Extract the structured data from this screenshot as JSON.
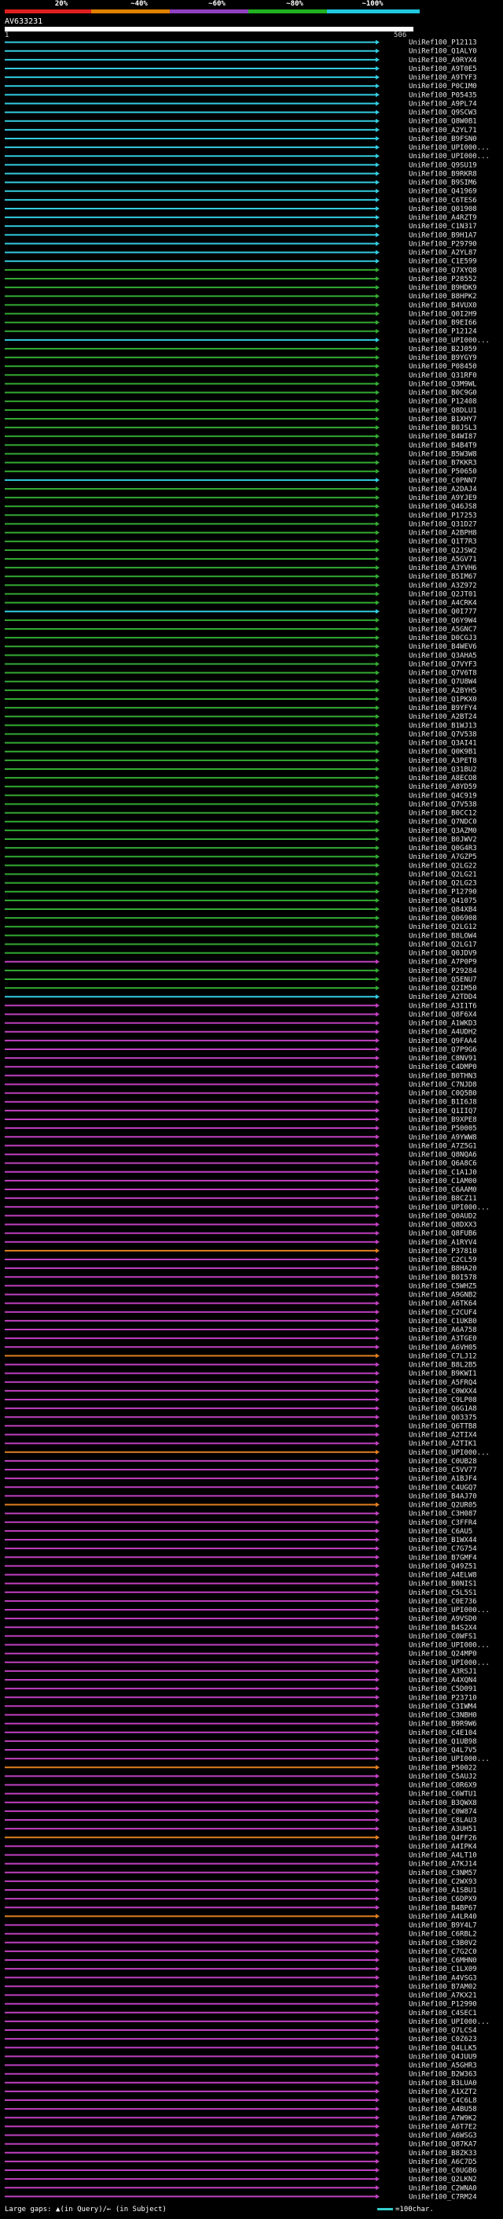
{
  "scale": {
    "labels": [
      "20%",
      "~40%",
      "~60%",
      "~80%",
      "~100%"
    ],
    "colors": [
      "#e02020",
      "#e08000",
      "#9040c0",
      "#20b020",
      "#20c8e0"
    ]
  },
  "query": {
    "name": "AV633231",
    "start": "1",
    "end": "506"
  },
  "legend": {
    "gaps": "Large gaps: ▲(in Query)/← (in Subject)",
    "scale_note": "=100char."
  },
  "hits": [
    {
      "id": "UniRef100_P12113",
      "color": "cyan"
    },
    {
      "id": "UniRef100_Q1ALY0",
      "color": "cyan"
    },
    {
      "id": "UniRef100_A9RYX4",
      "color": "cyan"
    },
    {
      "id": "UniRef100_A9T0E5",
      "color": "cyan"
    },
    {
      "id": "UniRef100_A9TYF3",
      "color": "cyan"
    },
    {
      "id": "UniRef100_P0C1M0",
      "color": "cyan"
    },
    {
      "id": "UniRef100_P05435",
      "color": "cyan"
    },
    {
      "id": "UniRef100_A9PL74",
      "color": "cyan"
    },
    {
      "id": "UniRef100_Q9SCW3",
      "color": "cyan"
    },
    {
      "id": "UniRef100_Q8W0B1",
      "color": "cyan"
    },
    {
      "id": "UniRef100_A2YL71",
      "color": "cyan"
    },
    {
      "id": "UniRef100_B9FSN0",
      "color": "cyan"
    },
    {
      "id": "UniRef100_UPI000...",
      "color": "cyan"
    },
    {
      "id": "UniRef100_UPI000...",
      "color": "cyan"
    },
    {
      "id": "UniRef100_Q9SU19",
      "color": "cyan"
    },
    {
      "id": "UniRef100_B9RKR8",
      "color": "cyan"
    },
    {
      "id": "UniRef100_B9SIM6",
      "color": "cyan"
    },
    {
      "id": "UniRef100_Q41969",
      "color": "cyan"
    },
    {
      "id": "UniRef100_C6TES6",
      "color": "cyan"
    },
    {
      "id": "UniRef100_Q01908",
      "color": "cyan"
    },
    {
      "id": "UniRef100_A4RZT9",
      "color": "cyan"
    },
    {
      "id": "UniRef100_C1N317",
      "color": "cyan"
    },
    {
      "id": "UniRef100_B9H1A7",
      "color": "cyan"
    },
    {
      "id": "UniRef100_P29790",
      "color": "cyan"
    },
    {
      "id": "UniRef100_A2YL87",
      "color": "cyan"
    },
    {
      "id": "UniRef100_C1E599",
      "color": "cyan"
    },
    {
      "id": "UniRef100_Q7XYQ8",
      "color": "green"
    },
    {
      "id": "UniRef100_P28552",
      "color": "green"
    },
    {
      "id": "UniRef100_B9HDK9",
      "color": "green"
    },
    {
      "id": "UniRef100_B8HPK2",
      "color": "green"
    },
    {
      "id": "UniRef100_B4VUX0",
      "color": "green"
    },
    {
      "id": "UniRef100_Q0I2H9",
      "color": "green"
    },
    {
      "id": "UniRef100_B9EI66",
      "color": "green"
    },
    {
      "id": "UniRef100_P12124",
      "color": "green"
    },
    {
      "id": "UniRef100_UPI000...",
      "color": "cyan"
    },
    {
      "id": "UniRef100_B2J059",
      "color": "green"
    },
    {
      "id": "UniRef100_B9YGY9",
      "color": "green"
    },
    {
      "id": "UniRef100_P08450",
      "color": "green"
    },
    {
      "id": "UniRef100_Q31RF0",
      "color": "green"
    },
    {
      "id": "UniRef100_Q3M9WL",
      "color": "green"
    },
    {
      "id": "UniRef100_B0C9G0",
      "color": "green"
    },
    {
      "id": "UniRef100_P12408",
      "color": "green"
    },
    {
      "id": "UniRef100_Q8DLU1",
      "color": "green"
    },
    {
      "id": "UniRef100_B1XHY7",
      "color": "green"
    },
    {
      "id": "UniRef100_B0JSL3",
      "color": "green"
    },
    {
      "id": "UniRef100_B4WI87",
      "color": "green"
    },
    {
      "id": "UniRef100_B4B4T9",
      "color": "green"
    },
    {
      "id": "UniRef100_B5W3W8",
      "color": "green"
    },
    {
      "id": "UniRef100_B7KKR3",
      "color": "green"
    },
    {
      "id": "UniRef100_P50650",
      "color": "green"
    },
    {
      "id": "UniRef100_C0PNN7",
      "color": "cyan"
    },
    {
      "id": "UniRef100_A2DAJ4",
      "color": "green"
    },
    {
      "id": "UniRef100_A9YJE9",
      "color": "green"
    },
    {
      "id": "UniRef100_Q46JS8",
      "color": "green"
    },
    {
      "id": "UniRef100_P17253",
      "color": "green"
    },
    {
      "id": "UniRef100_Q31D27",
      "color": "green"
    },
    {
      "id": "UniRef100_A2BPH8",
      "color": "green"
    },
    {
      "id": "UniRef100_Q1T7R3",
      "color": "green"
    },
    {
      "id": "UniRef100_Q2JSW2",
      "color": "green"
    },
    {
      "id": "UniRef100_A5GV71",
      "color": "green"
    },
    {
      "id": "UniRef100_A3YVH6",
      "color": "green"
    },
    {
      "id": "UniRef100_B5IM67",
      "color": "green"
    },
    {
      "id": "UniRef100_A3Z972",
      "color": "green"
    },
    {
      "id": "UniRef100_Q2JT01",
      "color": "green"
    },
    {
      "id": "UniRef100_A4CRK4",
      "color": "green"
    },
    {
      "id": "UniRef100_Q0I777",
      "color": "cyan"
    },
    {
      "id": "UniRef100_Q6Y9W4",
      "color": "green"
    },
    {
      "id": "UniRef100_A5GNC7",
      "color": "green"
    },
    {
      "id": "UniRef100_D0CGJ3",
      "color": "green"
    },
    {
      "id": "UniRef100_B4WEV6",
      "color": "green"
    },
    {
      "id": "UniRef100_Q3AHA5",
      "color": "green"
    },
    {
      "id": "UniRef100_Q7VYF3",
      "color": "green"
    },
    {
      "id": "UniRef100_Q7V6T8",
      "color": "green"
    },
    {
      "id": "UniRef100_Q7U8W4",
      "color": "green"
    },
    {
      "id": "UniRef100_A2BYH5",
      "color": "green"
    },
    {
      "id": "UniRef100_Q1PKX0",
      "color": "green"
    },
    {
      "id": "UniRef100_B9YFY4",
      "color": "green"
    },
    {
      "id": "UniRef100_A2BT24",
      "color": "green"
    },
    {
      "id": "UniRef100_B1WJ13",
      "color": "green"
    },
    {
      "id": "UniRef100_Q7V538",
      "color": "green"
    },
    {
      "id": "UniRef100_Q3AI41",
      "color": "green"
    },
    {
      "id": "UniRef100_Q0K9B1",
      "color": "green"
    },
    {
      "id": "UniRef100_A3PET8",
      "color": "green"
    },
    {
      "id": "UniRef100_Q31BU2",
      "color": "green"
    },
    {
      "id": "UniRef100_A8ECO8",
      "color": "green"
    },
    {
      "id": "UniRef100_A8YD59",
      "color": "green"
    },
    {
      "id": "UniRef100_Q4C919",
      "color": "green"
    },
    {
      "id": "UniRef100_Q7V538",
      "color": "green"
    },
    {
      "id": "UniRef100_B0CC12",
      "color": "green"
    },
    {
      "id": "UniRef100_Q7NDC0",
      "color": "green"
    },
    {
      "id": "UniRef100_Q3AZM0",
      "color": "green"
    },
    {
      "id": "UniRef100_B0JWV2",
      "color": "green"
    },
    {
      "id": "UniRef100_Q0G4R3",
      "color": "green"
    },
    {
      "id": "UniRef100_A7GZP5",
      "color": "green"
    },
    {
      "id": "UniRef100_Q2LG22",
      "color": "green"
    },
    {
      "id": "UniRef100_Q2LG21",
      "color": "green"
    },
    {
      "id": "UniRef100_Q2LG23",
      "color": "green"
    },
    {
      "id": "UniRef100_P12790",
      "color": "green"
    },
    {
      "id": "UniRef100_Q41075",
      "color": "green"
    },
    {
      "id": "UniRef100_Q84XB4",
      "color": "green"
    },
    {
      "id": "UniRef100_Q06908",
      "color": "green"
    },
    {
      "id": "UniRef100_Q2LG12",
      "color": "green"
    },
    {
      "id": "UniRef100_B8LOW4",
      "color": "green"
    },
    {
      "id": "UniRef100_Q2LG17",
      "color": "green"
    },
    {
      "id": "UniRef100_Q0JDV9",
      "color": "green"
    },
    {
      "id": "UniRef100_A7P0P9",
      "color": "magenta"
    },
    {
      "id": "UniRef100_P29284",
      "color": "green"
    },
    {
      "id": "UniRef100_Q5ENU7",
      "color": "green"
    },
    {
      "id": "UniRef100_Q2IM50",
      "color": "green"
    },
    {
      "id": "UniRef100_A2TDD4",
      "color": "cyan"
    },
    {
      "id": "UniRef100_A3I1T6",
      "color": "magenta"
    },
    {
      "id": "UniRef100_Q8F6X4",
      "color": "magenta"
    },
    {
      "id": "UniRef100_A1WKD3",
      "color": "magenta"
    },
    {
      "id": "UniRef100_A4UDH2",
      "color": "magenta"
    },
    {
      "id": "UniRef100_Q9FAA4",
      "color": "magenta"
    },
    {
      "id": "UniRef100_Q7P9G6",
      "color": "magenta"
    },
    {
      "id": "UniRef100_C8NV91",
      "color": "magenta"
    },
    {
      "id": "UniRef100_C4DMP0",
      "color": "magenta"
    },
    {
      "id": "UniRef100_B0THN3",
      "color": "magenta"
    },
    {
      "id": "UniRef100_C7NJD8",
      "color": "magenta"
    },
    {
      "id": "UniRef100_C0Q5B0",
      "color": "magenta"
    },
    {
      "id": "UniRef100_B1I6J8",
      "color": "magenta"
    },
    {
      "id": "UniRef100_Q1IIQ7",
      "color": "magenta"
    },
    {
      "id": "UniRef100_B9XPE8",
      "color": "magenta"
    },
    {
      "id": "UniRef100_P50005",
      "color": "magenta"
    },
    {
      "id": "UniRef100_A9YWW8",
      "color": "magenta"
    },
    {
      "id": "UniRef100_A7Z5G1",
      "color": "magenta"
    },
    {
      "id": "UniRef100_Q8NQA6",
      "color": "magenta"
    },
    {
      "id": "UniRef100_Q6A8C6",
      "color": "magenta"
    },
    {
      "id": "UniRef100_C1A1J0",
      "color": "magenta"
    },
    {
      "id": "UniRef100_C1AM00",
      "color": "magenta"
    },
    {
      "id": "UniRef100_C6AAM0",
      "color": "magenta"
    },
    {
      "id": "UniRef100_B8CZ11",
      "color": "magenta"
    },
    {
      "id": "UniRef100_UPI000...",
      "color": "magenta"
    },
    {
      "id": "UniRef100_Q0AUD2",
      "color": "magenta"
    },
    {
      "id": "UniRef100_Q8DXX3",
      "color": "magenta"
    },
    {
      "id": "UniRef100_Q8FUB6",
      "color": "magenta"
    },
    {
      "id": "UniRef100_A1RYV4",
      "color": "magenta"
    },
    {
      "id": "UniRef100_P37810",
      "color": "orange"
    },
    {
      "id": "UniRef100_C2CL59",
      "color": "magenta"
    },
    {
      "id": "UniRef100_B8HA20",
      "color": "magenta"
    },
    {
      "id": "UniRef100_B0I578",
      "color": "magenta"
    },
    {
      "id": "UniRef100_C5WHZ5",
      "color": "magenta"
    },
    {
      "id": "UniRef100_A9GNB2",
      "color": "magenta"
    },
    {
      "id": "UniRef100_A6TK64",
      "color": "magenta"
    },
    {
      "id": "UniRef100_C2CUF4",
      "color": "magenta"
    },
    {
      "id": "UniRef100_C1UKB0",
      "color": "magenta"
    },
    {
      "id": "UniRef100_A6A758",
      "color": "magenta"
    },
    {
      "id": "UniRef100_A3TGE0",
      "color": "magenta"
    },
    {
      "id": "UniRef100_A6VH05",
      "color": "magenta"
    },
    {
      "id": "UniRef100_C7LJ12",
      "color": "orange"
    },
    {
      "id": "UniRef100_B8L2B5",
      "color": "magenta"
    },
    {
      "id": "UniRef100_B9KWI1",
      "color": "magenta"
    },
    {
      "id": "UniRef100_A5FRQ4",
      "color": "magenta"
    },
    {
      "id": "UniRef100_C0WXX4",
      "color": "magenta"
    },
    {
      "id": "UniRef100_C9LP08",
      "color": "magenta"
    },
    {
      "id": "UniRef100_Q6G1A8",
      "color": "magenta"
    },
    {
      "id": "UniRef100_Q03375",
      "color": "magenta"
    },
    {
      "id": "UniRef100_Q6TTB8",
      "color": "magenta"
    },
    {
      "id": "UniRef100_A2TIX4",
      "color": "magenta"
    },
    {
      "id": "UniRef100_A2TIK1",
      "color": "magenta"
    },
    {
      "id": "UniRef100_UPI000...",
      "color": "orange"
    },
    {
      "id": "UniRef100_C0UB28",
      "color": "magenta"
    },
    {
      "id": "UniRef100_C5VV77",
      "color": "magenta"
    },
    {
      "id": "UniRef100_A1BJF4",
      "color": "magenta"
    },
    {
      "id": "UniRef100_C4UGQ7",
      "color": "magenta"
    },
    {
      "id": "UniRef100_B4AJ70",
      "color": "magenta"
    },
    {
      "id": "UniRef100_Q2UR05",
      "color": "orange"
    },
    {
      "id": "UniRef100_C3H087",
      "color": "magenta"
    },
    {
      "id": "UniRef100_C3FFR4",
      "color": "magenta"
    },
    {
      "id": "UniRef100_C6AU5",
      "color": "magenta"
    },
    {
      "id": "UniRef100_B1WX44",
      "color": "magenta"
    },
    {
      "id": "UniRef100_C7G754",
      "color": "magenta"
    },
    {
      "id": "UniRef100_B7GMF4",
      "color": "magenta"
    },
    {
      "id": "UniRef100_Q49Z51",
      "color": "magenta"
    },
    {
      "id": "UniRef100_A4ELW8",
      "color": "magenta"
    },
    {
      "id": "UniRef100_B0NIS1",
      "color": "magenta"
    },
    {
      "id": "UniRef100_C5L5S1",
      "color": "magenta"
    },
    {
      "id": "UniRef100_C0E736",
      "color": "magenta"
    },
    {
      "id": "UniRef100_UPI000...",
      "color": "magenta"
    },
    {
      "id": "UniRef100_A9VSD0",
      "color": "magenta"
    },
    {
      "id": "UniRef100_B4S2X4",
      "color": "magenta"
    },
    {
      "id": "UniRef100_C0WFS1",
      "color": "magenta"
    },
    {
      "id": "UniRef100_UPI000...",
      "color": "magenta"
    },
    {
      "id": "UniRef100_Q24MP0",
      "color": "magenta"
    },
    {
      "id": "UniRef100_UPI000...",
      "color": "magenta"
    },
    {
      "id": "UniRef100_A3RSJ1",
      "color": "magenta"
    },
    {
      "id": "UniRef100_A4XQN4",
      "color": "magenta"
    },
    {
      "id": "UniRef100_C5D091",
      "color": "magenta"
    },
    {
      "id": "UniRef100_P23710",
      "color": "magenta"
    },
    {
      "id": "UniRef100_C3IWM4",
      "color": "magenta"
    },
    {
      "id": "UniRef100_C3NBH0",
      "color": "magenta"
    },
    {
      "id": "UniRef100_B9R9W6",
      "color": "magenta"
    },
    {
      "id": "UniRef100_C4E104",
      "color": "magenta"
    },
    {
      "id": "UniRef100_Q1UB98",
      "color": "magenta"
    },
    {
      "id": "UniRef100_Q4L7V5",
      "color": "magenta"
    },
    {
      "id": "UniRef100_UPI000...",
      "color": "magenta"
    },
    {
      "id": "UniRef100_P50022",
      "color": "orange"
    },
    {
      "id": "UniRef100_C5AUJ2",
      "color": "magenta"
    },
    {
      "id": "UniRef100_C0R6X9",
      "color": "magenta"
    },
    {
      "id": "UniRef100_C6WTU1",
      "color": "magenta"
    },
    {
      "id": "UniRef100_B3QWX8",
      "color": "magenta"
    },
    {
      "id": "UniRef100_C0W874",
      "color": "magenta"
    },
    {
      "id": "UniRef100_C8LAU3",
      "color": "magenta"
    },
    {
      "id": "UniRef100_A3UH51",
      "color": "magenta"
    },
    {
      "id": "UniRef100_Q4FF26",
      "color": "orange"
    },
    {
      "id": "UniRef100_A4IPK4",
      "color": "magenta"
    },
    {
      "id": "UniRef100_A4LT10",
      "color": "magenta"
    },
    {
      "id": "UniRef100_A7KJ14",
      "color": "magenta"
    },
    {
      "id": "UniRef100_C3NM57",
      "color": "magenta"
    },
    {
      "id": "UniRef100_C2WX93",
      "color": "magenta"
    },
    {
      "id": "UniRef100_A1SBU1",
      "color": "magenta"
    },
    {
      "id": "UniRef100_C6DPX9",
      "color": "magenta"
    },
    {
      "id": "UniRef100_B4BP67",
      "color": "magenta"
    },
    {
      "id": "UniRef100_A4LR40",
      "color": "orange"
    },
    {
      "id": "UniRef100_B9Y4L7",
      "color": "magenta"
    },
    {
      "id": "UniRef100_C6RBL2",
      "color": "magenta"
    },
    {
      "id": "UniRef100_C3B0V2",
      "color": "magenta"
    },
    {
      "id": "UniRef100_C7G2C0",
      "color": "magenta"
    },
    {
      "id": "UniRef100_C6MHN0",
      "color": "magenta"
    },
    {
      "id": "UniRef100_C1LX09",
      "color": "magenta"
    },
    {
      "id": "UniRef100_A4VSG3",
      "color": "magenta"
    },
    {
      "id": "UniRef100_B7AM02",
      "color": "magenta"
    },
    {
      "id": "UniRef100_A7KX21",
      "color": "magenta"
    },
    {
      "id": "UniRef100_P12990",
      "color": "magenta"
    },
    {
      "id": "UniRef100_C4SEC1",
      "color": "magenta"
    },
    {
      "id": "UniRef100_UPI000...",
      "color": "magenta"
    },
    {
      "id": "UniRef100_Q7LCS4",
      "color": "magenta"
    },
    {
      "id": "UniRef100_C0Z623",
      "color": "magenta"
    },
    {
      "id": "UniRef100_Q4LLK5",
      "color": "magenta"
    },
    {
      "id": "UniRef100_Q4JUU9",
      "color": "magenta"
    },
    {
      "id": "UniRef100_A5GHR3",
      "color": "magenta"
    },
    {
      "id": "UniRef100_B2W363",
      "color": "magenta"
    },
    {
      "id": "UniRef100_B3LUA0",
      "color": "magenta"
    },
    {
      "id": "UniRef100_A1XZT2",
      "color": "magenta"
    },
    {
      "id": "UniRef100_C4C6L8",
      "color": "magenta"
    },
    {
      "id": "UniRef100_A4BU58",
      "color": "magenta"
    },
    {
      "id": "UniRef100_A7W9K2",
      "color": "magenta"
    },
    {
      "id": "UniRef100_A6T7E2",
      "color": "magenta"
    },
    {
      "id": "UniRef100_A6WSG3",
      "color": "magenta"
    },
    {
      "id": "UniRef100_Q87KA7",
      "color": "magenta"
    },
    {
      "id": "UniRef100_B8ZK33",
      "color": "magenta"
    },
    {
      "id": "UniRef100_A6C7D5",
      "color": "magenta"
    },
    {
      "id": "UniRef100_C0UGB6",
      "color": "magenta"
    },
    {
      "id": "UniRef100_Q2LKN2",
      "color": "magenta"
    },
    {
      "id": "UniRef100_C2WNA0",
      "color": "magenta"
    },
    {
      "id": "UniRef100_C7RM24",
      "color": "magenta"
    }
  ]
}
